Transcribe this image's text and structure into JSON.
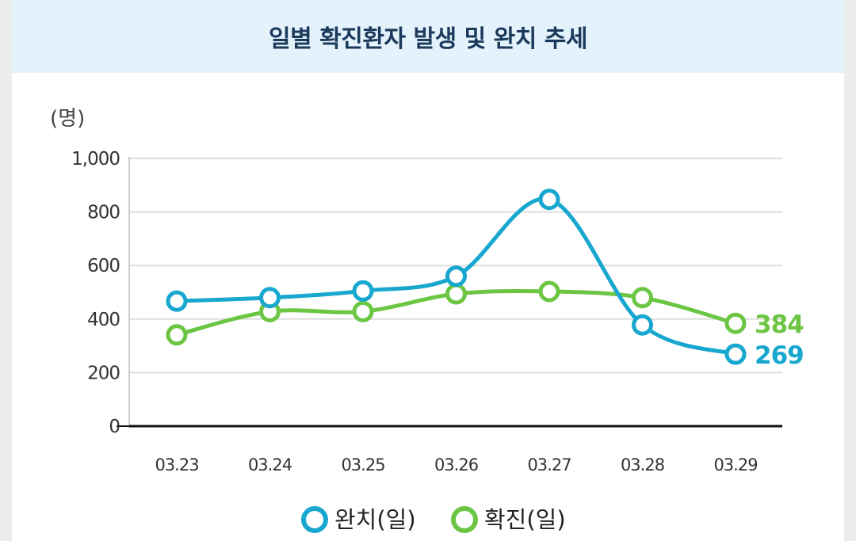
{
  "title": "일별 확진환자 발생 및 완치 추세",
  "colors": {
    "completed": "#17a7cf",
    "confirmed": "#6cc644",
    "header_bg": "#e3f2fb",
    "title": "#1b3a5c"
  },
  "chart_data": {
    "type": "line",
    "title": "일별 확진환자 발생 및 완치 추세",
    "unit_label": "(명)",
    "categories": [
      "03.23",
      "03.24",
      "03.25",
      "03.26",
      "03.27",
      "03.28",
      "03.29"
    ],
    "ylim": [
      0,
      1000
    ],
    "yticks": [
      0,
      200,
      400,
      600,
      800,
      1000
    ],
    "ytick_labels": [
      "0",
      "200",
      "400",
      "600",
      "800",
      "1,000"
    ],
    "grid": true,
    "legend_position": "bottom-center",
    "series": [
      {
        "key": "completed",
        "name": "완치(일)",
        "color": "#17a7cf",
        "values": [
          467,
          480,
          505,
          560,
          847,
          378,
          269
        ],
        "end_label": "269"
      },
      {
        "key": "confirmed",
        "name": "확진(일)",
        "color": "#6cc644",
        "values": [
          341,
          428,
          428,
          494,
          503,
          480,
          384
        ],
        "end_label": "384"
      }
    ]
  }
}
